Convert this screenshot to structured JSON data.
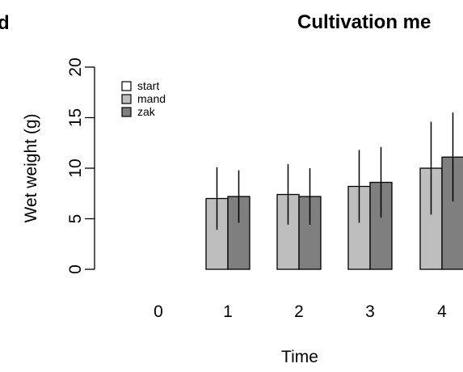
{
  "panel_label": "d",
  "chart_data": {
    "type": "bar",
    "title": "Cultivation me",
    "xlabel": "Time",
    "ylabel": "Wet weight (g)",
    "ylim": [
      0,
      20
    ],
    "yticks": [
      "0",
      "5",
      "10",
      "15",
      "20"
    ],
    "categories": [
      "0",
      "1",
      "2",
      "3",
      "4"
    ],
    "legend_position": "top-left",
    "grid": false,
    "series": [
      {
        "name": "start",
        "color": "#ffffff",
        "values": [
          null,
          null,
          null,
          null,
          null
        ],
        "error": [
          null,
          null,
          null,
          null,
          null
        ]
      },
      {
        "name": "mand",
        "color": "#bebebe",
        "values": [
          null,
          7.0,
          7.4,
          8.2,
          10.0
        ],
        "error": [
          null,
          3.1,
          3.0,
          3.6,
          4.6
        ]
      },
      {
        "name": "zak",
        "color": "#7f7f7f",
        "values": [
          null,
          7.2,
          7.2,
          8.6,
          11.1
        ],
        "error": [
          null,
          2.6,
          2.8,
          3.5,
          4.4
        ]
      }
    ]
  }
}
